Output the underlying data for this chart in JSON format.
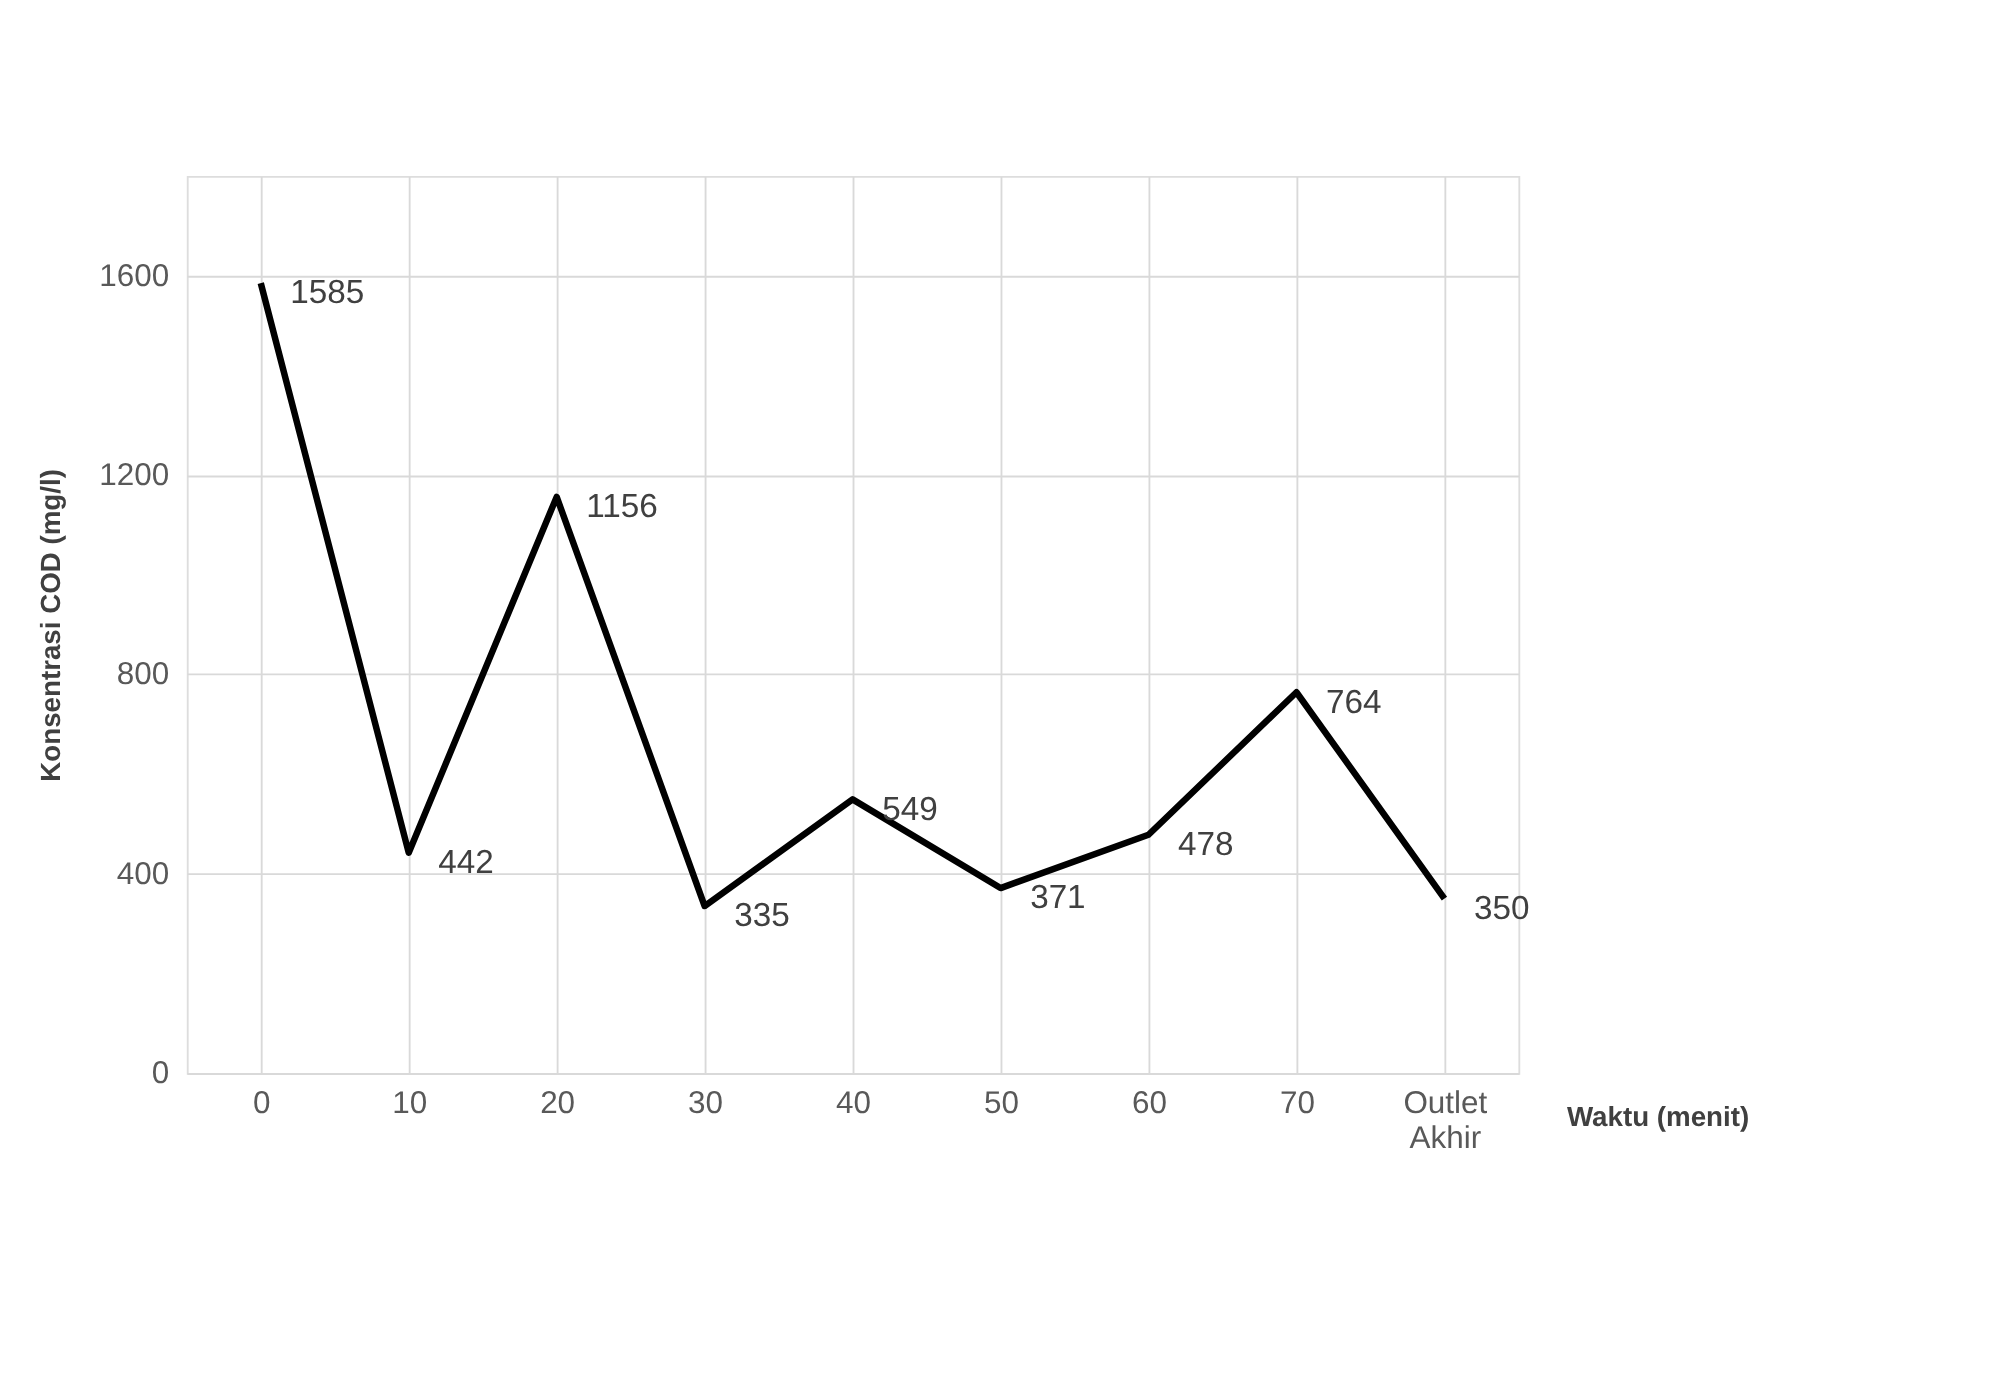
{
  "chart_data": {
    "type": "line",
    "xlabel": "Waktu (menit)",
    "ylabel": "Konsentrasi COD (mg/l)",
    "categories": [
      "0",
      "10",
      "20",
      "30",
      "40",
      "50",
      "60",
      "70",
      "Outlet Akhir"
    ],
    "series": [
      {
        "color": "#000000",
        "values": [
          1585,
          442,
          1156,
          335,
          549,
          371,
          478,
          764,
          350
        ]
      }
    ],
    "ylim": [
      0,
      1800
    ],
    "yticks": [
      0,
      400,
      800,
      1200,
      1600
    ],
    "grid": true,
    "data_labels": true,
    "marker": "none",
    "line_style": "solid"
  }
}
